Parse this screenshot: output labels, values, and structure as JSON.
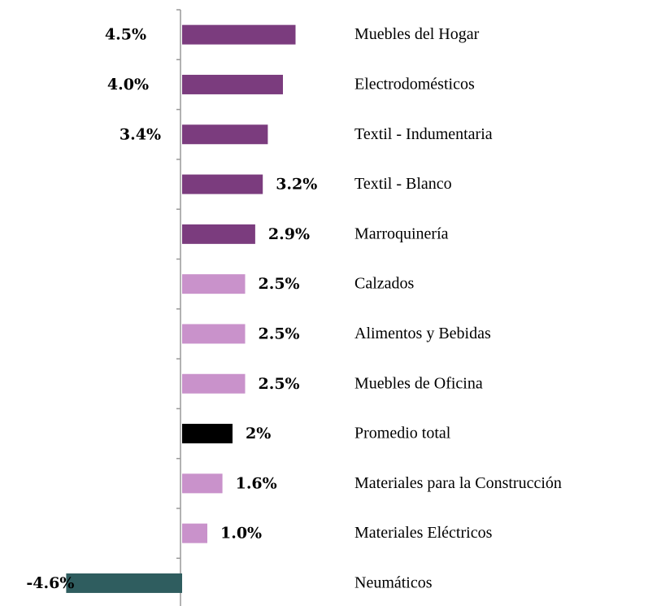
{
  "chart_data": {
    "type": "bar",
    "orientation": "horizontal",
    "categories": [
      "Muebles del Hogar",
      "Electrodomésticos",
      "Textil - Indumentaria",
      "Textil - Blanco",
      "Marroquinería",
      "Calzados",
      "Alimentos y Bebidas",
      "Muebles de Oficina",
      "Promedio total",
      "Materiales para la Construcción",
      "Materiales Eléctricos",
      "Neumáticos"
    ],
    "values": [
      4.5,
      4.0,
      3.4,
      3.2,
      2.9,
      2.5,
      2.5,
      2.5,
      2,
      1.6,
      1.0,
      -4.6
    ],
    "value_labels": [
      "4.5%",
      "4.0%",
      "3.4%",
      "3.2%",
      "2.9%",
      "2.5%",
      "2.5%",
      "2.5%",
      "2%",
      "1.6%",
      "1.0%",
      "-4.6%"
    ],
    "colors": [
      "#7b3c7e",
      "#7b3c7e",
      "#7b3c7e",
      "#7b3c7e",
      "#7b3c7e",
      "#c992cb",
      "#c992cb",
      "#c992cb",
      "#000000",
      "#c992cb",
      "#c992cb",
      "#2f5d5f"
    ]
  }
}
